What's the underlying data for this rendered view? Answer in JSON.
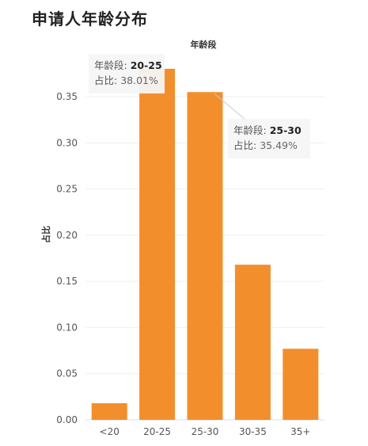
{
  "title": "申请人年龄分布",
  "chart_data": {
    "type": "bar",
    "title": "申请人年龄分布",
    "xlabel": "年龄段",
    "ylabel": "占比",
    "categories": [
      "<20",
      "20-25",
      "25-30",
      "30-35",
      "35+"
    ],
    "values": [
      0.018,
      0.3801,
      0.3549,
      0.168,
      0.077
    ],
    "ylim": [
      0,
      0.38
    ],
    "yticks": [
      "0.00",
      "0.05",
      "0.10",
      "0.15",
      "0.20",
      "0.25",
      "0.30",
      "0.35"
    ],
    "ytick_values": [
      0,
      0.05,
      0.1,
      0.15,
      0.2,
      0.25,
      0.3,
      0.35
    ],
    "grid": true,
    "bar_color": "#f28f2c",
    "tooltips": [
      {
        "category_index": 1,
        "key1": "年龄段:",
        "val1": "20-25",
        "key2": "占比:",
        "val2": "38.01%"
      },
      {
        "category_index": 2,
        "key1": "年龄段:",
        "val1": "25-30",
        "key2": "占比:",
        "val2": "35.49%"
      }
    ]
  }
}
